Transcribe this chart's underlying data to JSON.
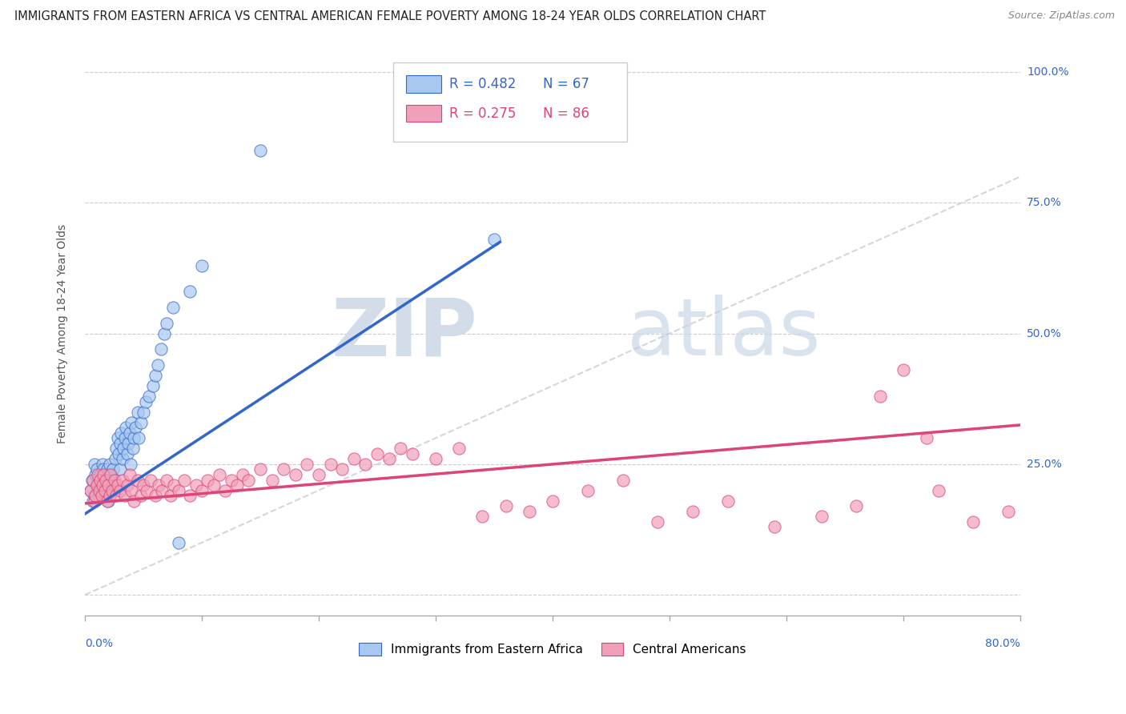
{
  "title": "IMMIGRANTS FROM EASTERN AFRICA VS CENTRAL AMERICAN FEMALE POVERTY AMONG 18-24 YEAR OLDS CORRELATION CHART",
  "source": "Source: ZipAtlas.com",
  "ylabel": "Female Poverty Among 18-24 Year Olds",
  "series1_label": "Immigrants from Eastern Africa",
  "series2_label": "Central Americans",
  "series1_color": "#a8c8f0",
  "series2_color": "#f0a0b8",
  "series1_line_color": "#3366cc",
  "series2_line_color": "#dd4477",
  "ref_line_color": "#cccccc",
  "watermark_zip": "ZIP",
  "watermark_atlas": "atlas",
  "xlim": [
    0.0,
    0.8
  ],
  "ylim": [
    -0.04,
    1.04
  ],
  "title_fontsize": 10.5,
  "source_fontsize": 9,
  "legend_fontsize": 12,
  "axis_label_fontsize": 10,
  "tick_fontsize": 10,
  "trend1_x0": 0.0,
  "trend1_x1": 0.355,
  "trend1_y0": 0.155,
  "trend1_y1": 0.675,
  "trend2_x0": 0.0,
  "trend2_x1": 0.8,
  "trend2_y0": 0.175,
  "trend2_y1": 0.325,
  "series1_x": [
    0.005,
    0.006,
    0.007,
    0.008,
    0.008,
    0.009,
    0.01,
    0.01,
    0.011,
    0.012,
    0.012,
    0.013,
    0.013,
    0.014,
    0.015,
    0.015,
    0.016,
    0.016,
    0.017,
    0.018,
    0.018,
    0.019,
    0.02,
    0.02,
    0.021,
    0.022,
    0.022,
    0.023,
    0.024,
    0.025,
    0.026,
    0.027,
    0.028,
    0.029,
    0.03,
    0.03,
    0.031,
    0.032,
    0.033,
    0.034,
    0.035,
    0.036,
    0.037,
    0.038,
    0.039,
    0.04,
    0.041,
    0.042,
    0.043,
    0.045,
    0.046,
    0.048,
    0.05,
    0.052,
    0.055,
    0.058,
    0.06,
    0.062,
    0.065,
    0.068,
    0.07,
    0.075,
    0.08,
    0.09,
    0.1,
    0.15,
    0.35
  ],
  "series1_y": [
    0.2,
    0.22,
    0.18,
    0.25,
    0.19,
    0.23,
    0.21,
    0.24,
    0.2,
    0.22,
    0.19,
    0.23,
    0.21,
    0.2,
    0.25,
    0.22,
    0.24,
    0.19,
    0.23,
    0.21,
    0.2,
    0.24,
    0.22,
    0.18,
    0.25,
    0.23,
    0.2,
    0.22,
    0.24,
    0.21,
    0.26,
    0.28,
    0.3,
    0.27,
    0.29,
    0.24,
    0.31,
    0.26,
    0.28,
    0.3,
    0.32,
    0.27,
    0.29,
    0.31,
    0.25,
    0.33,
    0.28,
    0.3,
    0.32,
    0.35,
    0.3,
    0.33,
    0.35,
    0.37,
    0.38,
    0.4,
    0.42,
    0.44,
    0.47,
    0.5,
    0.52,
    0.55,
    0.1,
    0.58,
    0.63,
    0.85,
    0.68
  ],
  "series2_x": [
    0.005,
    0.007,
    0.008,
    0.009,
    0.01,
    0.011,
    0.012,
    0.013,
    0.014,
    0.015,
    0.016,
    0.017,
    0.018,
    0.019,
    0.02,
    0.021,
    0.022,
    0.023,
    0.025,
    0.027,
    0.028,
    0.03,
    0.032,
    0.034,
    0.036,
    0.038,
    0.04,
    0.042,
    0.045,
    0.048,
    0.05,
    0.053,
    0.056,
    0.06,
    0.063,
    0.066,
    0.07,
    0.073,
    0.076,
    0.08,
    0.085,
    0.09,
    0.095,
    0.1,
    0.105,
    0.11,
    0.115,
    0.12,
    0.125,
    0.13,
    0.135,
    0.14,
    0.15,
    0.16,
    0.17,
    0.18,
    0.19,
    0.2,
    0.21,
    0.22,
    0.23,
    0.24,
    0.25,
    0.26,
    0.27,
    0.28,
    0.3,
    0.32,
    0.34,
    0.36,
    0.38,
    0.4,
    0.43,
    0.46,
    0.49,
    0.52,
    0.55,
    0.59,
    0.63,
    0.66,
    0.7,
    0.73,
    0.76,
    0.79,
    0.72,
    0.68
  ],
  "series2_y": [
    0.2,
    0.22,
    0.18,
    0.19,
    0.21,
    0.23,
    0.2,
    0.22,
    0.19,
    0.21,
    0.23,
    0.2,
    0.22,
    0.18,
    0.21,
    0.19,
    0.23,
    0.2,
    0.22,
    0.19,
    0.21,
    0.2,
    0.22,
    0.19,
    0.21,
    0.23,
    0.2,
    0.18,
    0.22,
    0.19,
    0.21,
    0.2,
    0.22,
    0.19,
    0.21,
    0.2,
    0.22,
    0.19,
    0.21,
    0.2,
    0.22,
    0.19,
    0.21,
    0.2,
    0.22,
    0.21,
    0.23,
    0.2,
    0.22,
    0.21,
    0.23,
    0.22,
    0.24,
    0.22,
    0.24,
    0.23,
    0.25,
    0.23,
    0.25,
    0.24,
    0.26,
    0.25,
    0.27,
    0.26,
    0.28,
    0.27,
    0.26,
    0.28,
    0.15,
    0.17,
    0.16,
    0.18,
    0.2,
    0.22,
    0.14,
    0.16,
    0.18,
    0.13,
    0.15,
    0.17,
    0.43,
    0.2,
    0.14,
    0.16,
    0.3,
    0.38
  ]
}
